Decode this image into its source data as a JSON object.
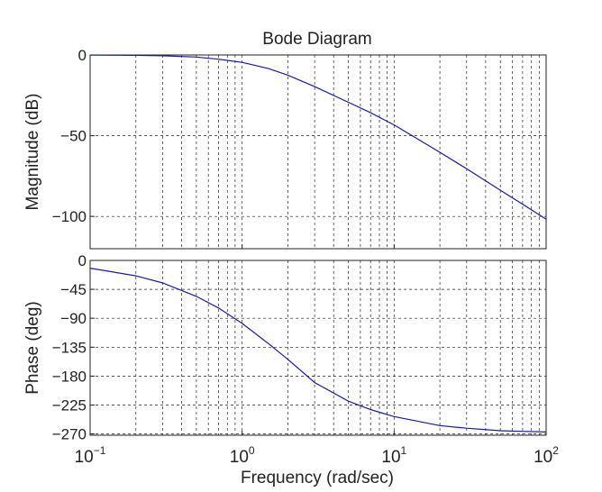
{
  "chart_data": {
    "type": "line",
    "title": "Bode Diagram",
    "xlabel": "Frequency  (rad/sec)",
    "xscale": "log",
    "xlim": [
      0.1,
      100
    ],
    "x_ticks": [
      {
        "base": "10",
        "exp": "-1"
      },
      {
        "base": "10",
        "exp": "0"
      },
      {
        "base": "10",
        "exp": "1"
      },
      {
        "base": "10",
        "exp": "2"
      }
    ],
    "grid": true,
    "line_color": "#1a1aa0",
    "panels": [
      {
        "name": "magnitude",
        "ylabel": "Magnitude (dB)",
        "ylim": [
          -120,
          0
        ],
        "yticks": [
          0,
          -50,
          -100
        ],
        "series": [
          {
            "x": [
              0.1,
              0.2,
              0.3,
              0.5,
              0.7,
              1,
              1.5,
              2,
              3,
              5,
              7,
              10,
              20,
              30,
              50,
              70,
              100
            ],
            "values": [
              -0.1,
              -0.2,
              -0.5,
              -1.3,
              -2.6,
              -4.6,
              -8.5,
              -12.5,
              -19.6,
              -29.3,
              -35.8,
              -43.3,
              -60.3,
              -70.5,
              -83.8,
              -92.4,
              -101.7
            ]
          }
        ]
      },
      {
        "name": "phase",
        "ylabel": "Phase (deg)",
        "ylim": [
          -272,
          0
        ],
        "yticks": [
          0,
          -45,
          -90,
          -135,
          -180,
          -225,
          -270
        ],
        "series": [
          {
            "x": [
              0.1,
              0.2,
              0.3,
              0.5,
              0.7,
              1,
              1.5,
              2,
              3,
              5,
              7,
              10,
              20,
              30,
              50,
              70,
              100
            ],
            "values": [
              -12,
              -24,
              -35,
              -56,
              -74,
              -98,
              -130,
              -154,
              -190,
              -219,
              -232,
              -243,
              -257,
              -261,
              -265,
              -266,
              -267
            ]
          }
        ]
      }
    ]
  }
}
